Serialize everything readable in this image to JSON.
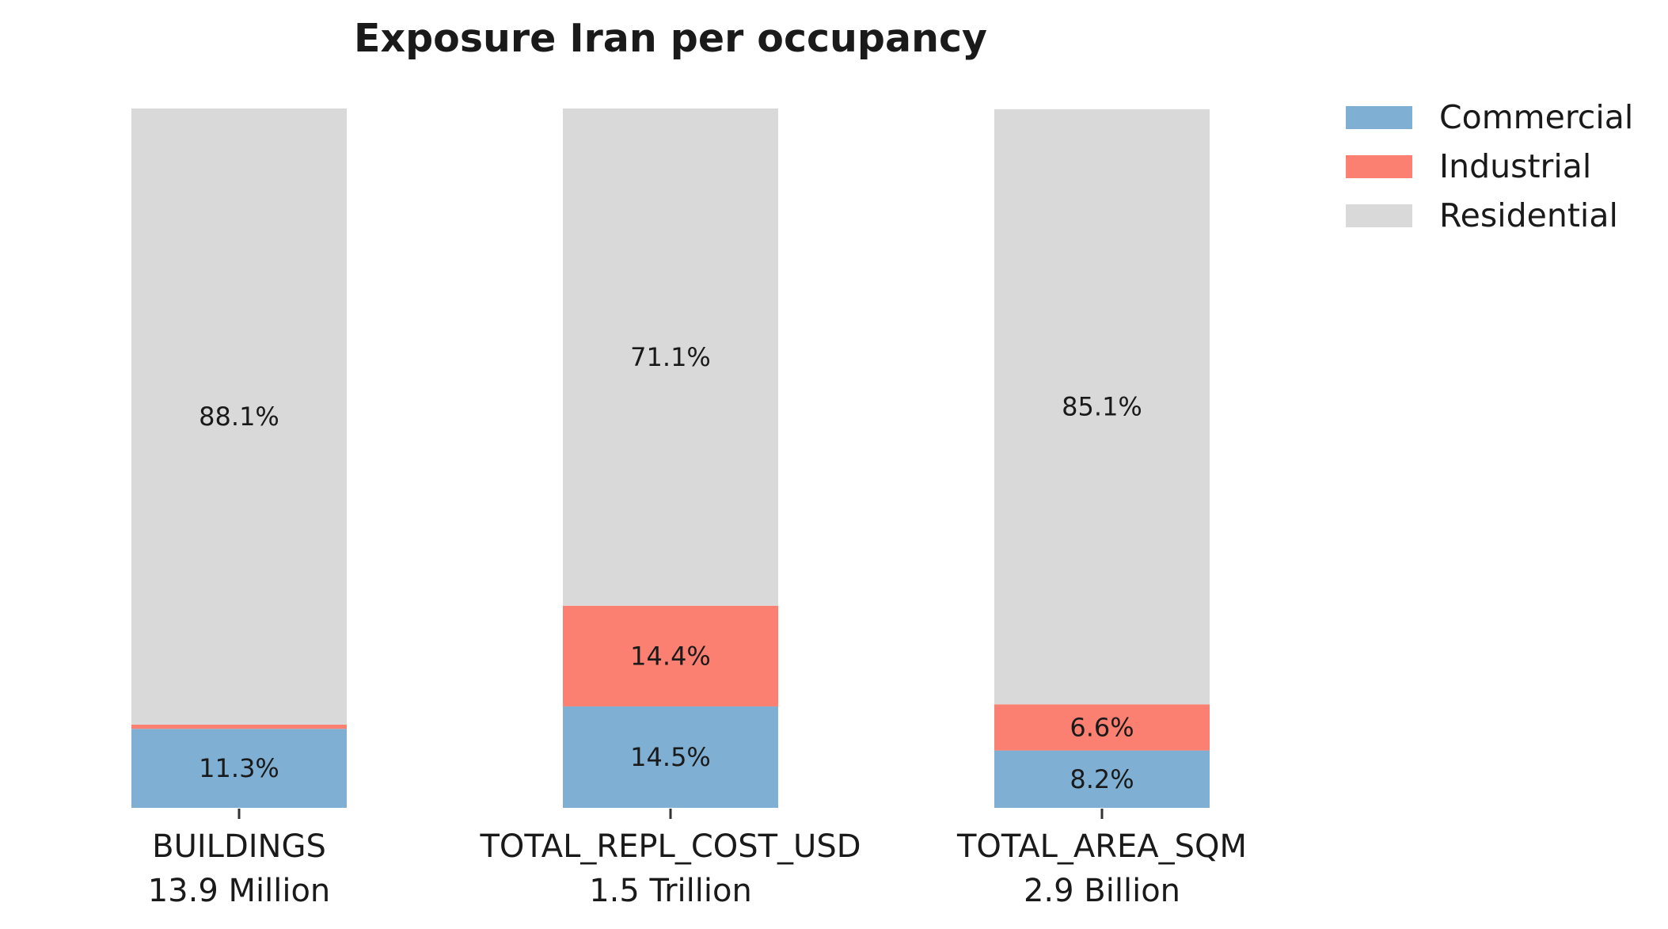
{
  "chart_data": {
    "type": "bar",
    "stacked": true,
    "title": "Exposure Iran per occupancy",
    "categories": [
      "BUILDINGS",
      "TOTAL_REPL_COST_USD",
      "TOTAL_AREA_SQM"
    ],
    "category_totals": [
      "13.9 Million",
      "1.5 Trillion",
      "2.9 Billion"
    ],
    "ylim": [
      0,
      100
    ],
    "grid": false,
    "legend_position": "top-right",
    "series": [
      {
        "name": "Commercial",
        "color": "#7fb0d3",
        "values": [
          11.3,
          14.5,
          8.2
        ],
        "labels": [
          "11.3%",
          "14.5%",
          "8.2%"
        ]
      },
      {
        "name": "Industrial",
        "color": "#fb8072",
        "values": [
          0.6,
          14.4,
          6.6
        ],
        "labels": [
          "",
          "14.4%",
          "6.6%"
        ]
      },
      {
        "name": "Residential",
        "color": "#d9d9d9",
        "values": [
          88.1,
          71.1,
          85.1
        ],
        "labels": [
          "88.1%",
          "71.1%",
          "85.1%"
        ]
      }
    ]
  }
}
